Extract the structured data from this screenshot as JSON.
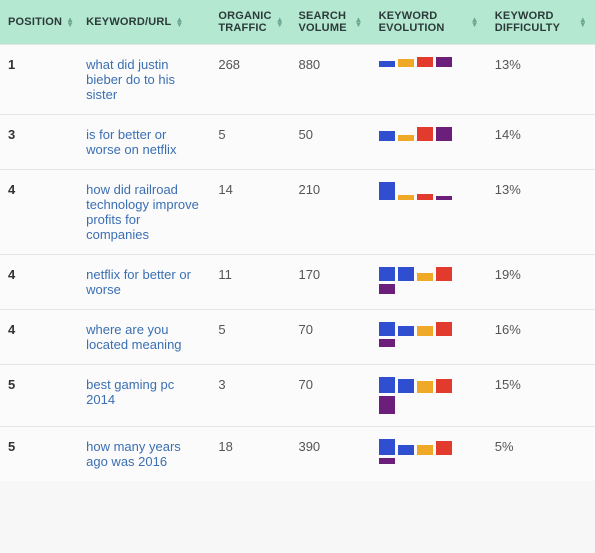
{
  "columns": {
    "position": "POSITION",
    "keyword": "KEYWORD/URL",
    "organic_traffic": "ORGANIC TRAFFIC",
    "search_volume": "SEARCH VOLUME",
    "keyword_evolution": "KEYWORD EVOLUTION",
    "keyword_difficulty": "KEYWORD DIFFICULTY"
  },
  "colors": {
    "header_bg": "#b5e8d0",
    "link": "#3b6fb3",
    "bar_blue": "#2f4fd0",
    "bar_orange": "#f0a828",
    "bar_red": "#e23b2e",
    "bar_purple": "#6b1e7a"
  },
  "rows": [
    {
      "position": "1",
      "keyword": "what did justin bieber do to his sister",
      "organic_traffic": "268",
      "search_volume": "880",
      "difficulty": "13%",
      "evolution": [
        {
          "color": "#2f4fd0",
          "h": 6
        },
        {
          "color": "#f0a828",
          "h": 8
        },
        {
          "color": "#e23b2e",
          "h": 10
        },
        {
          "color": "#6b1e7a",
          "h": 10
        }
      ]
    },
    {
      "position": "3",
      "keyword": "is for better or worse on netflix",
      "organic_traffic": "5",
      "search_volume": "50",
      "difficulty": "14%",
      "evolution": [
        {
          "color": "#2f4fd0",
          "h": 10
        },
        {
          "color": "#f0a828",
          "h": 6
        },
        {
          "color": "#e23b2e",
          "h": 14
        },
        {
          "color": "#6b1e7a",
          "h": 14
        }
      ]
    },
    {
      "position": "4",
      "keyword": "how did railroad technology improve profits for companies",
      "organic_traffic": "14",
      "search_volume": "210",
      "difficulty": "13%",
      "evolution": [
        {
          "color": "#2f4fd0",
          "h": 18
        },
        {
          "color": "#f0a828",
          "h": 5
        },
        {
          "color": "#e23b2e",
          "h": 6
        },
        {
          "color": "#6b1e7a",
          "h": 4
        }
      ]
    },
    {
      "position": "4",
      "keyword": "netflix for better or worse",
      "organic_traffic": "11",
      "search_volume": "170",
      "difficulty": "19%",
      "evolution": [
        {
          "color": "#2f4fd0",
          "h": 14
        },
        {
          "color": "#2f4fd0",
          "h": 14
        },
        {
          "color": "#f0a828",
          "h": 8
        },
        {
          "color": "#e23b2e",
          "h": 14
        },
        {
          "color": "#6b1e7a",
          "h": 10
        }
      ]
    },
    {
      "position": "4",
      "keyword": "where are you located meaning",
      "organic_traffic": "5",
      "search_volume": "70",
      "difficulty": "16%",
      "evolution": [
        {
          "color": "#2f4fd0",
          "h": 14
        },
        {
          "color": "#2f4fd0",
          "h": 10
        },
        {
          "color": "#f0a828",
          "h": 10
        },
        {
          "color": "#e23b2e",
          "h": 14
        },
        {
          "color": "#6b1e7a",
          "h": 8
        }
      ]
    },
    {
      "position": "5",
      "keyword": "best gaming pc 2014",
      "organic_traffic": "3",
      "search_volume": "70",
      "difficulty": "15%",
      "evolution": [
        {
          "color": "#2f4fd0",
          "h": 16
        },
        {
          "color": "#2f4fd0",
          "h": 14
        },
        {
          "color": "#f0a828",
          "h": 12
        },
        {
          "color": "#e23b2e",
          "h": 14
        },
        {
          "color": "#6b1e7a",
          "h": 18
        }
      ]
    },
    {
      "position": "5",
      "keyword": "how many years ago was 2016",
      "organic_traffic": "18",
      "search_volume": "390",
      "difficulty": "5%",
      "evolution": [
        {
          "color": "#2f4fd0",
          "h": 16
        },
        {
          "color": "#2f4fd0",
          "h": 10
        },
        {
          "color": "#f0a828",
          "h": 10
        },
        {
          "color": "#e23b2e",
          "h": 14
        },
        {
          "color": "#6b1e7a",
          "h": 6
        }
      ]
    }
  ]
}
